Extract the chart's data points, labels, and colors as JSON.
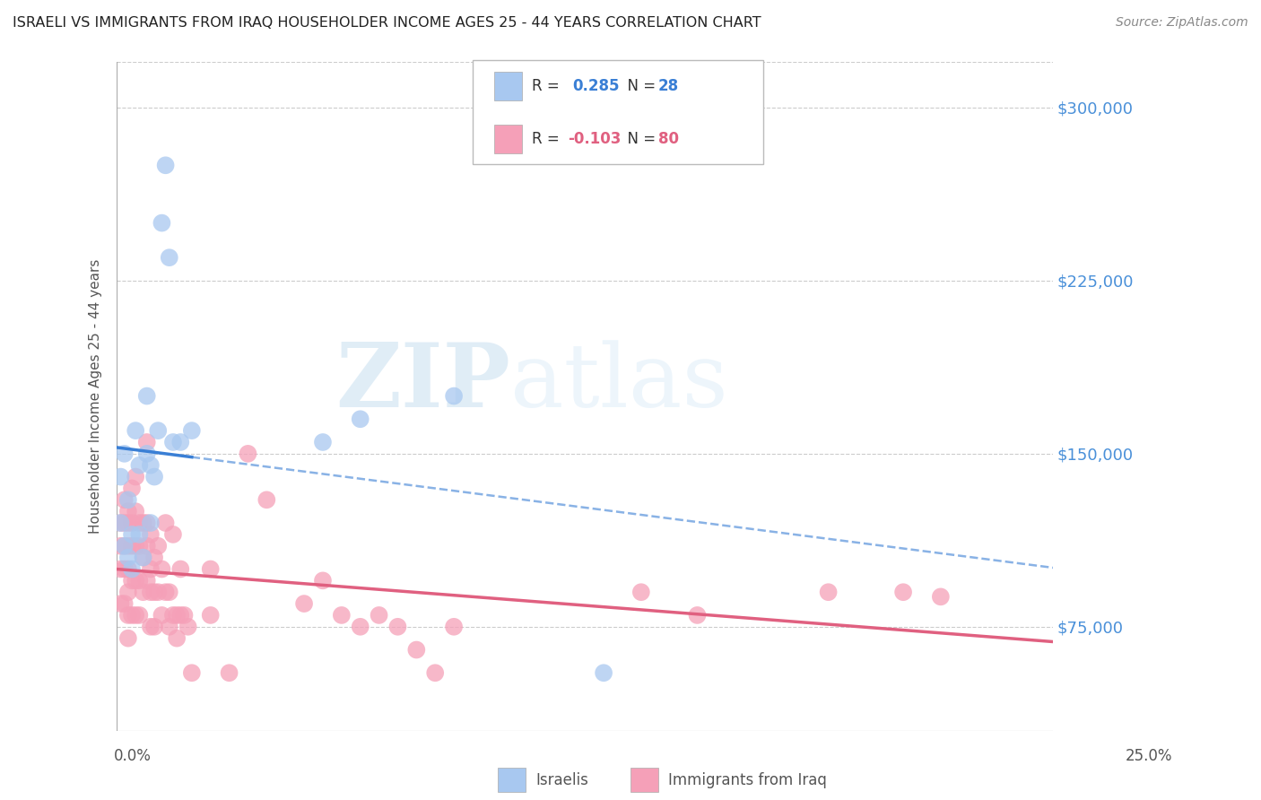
{
  "title": "ISRAELI VS IMMIGRANTS FROM IRAQ HOUSEHOLDER INCOME AGES 25 - 44 YEARS CORRELATION CHART",
  "source": "Source: ZipAtlas.com",
  "ylabel": "Householder Income Ages 25 - 44 years",
  "ytick_labels": [
    "$75,000",
    "$150,000",
    "$225,000",
    "$300,000"
  ],
  "ytick_values": [
    75000,
    150000,
    225000,
    300000
  ],
  "ymin": 30000,
  "ymax": 320000,
  "xmin": 0.0,
  "xmax": 0.25,
  "color_israeli": "#a8c8f0",
  "color_iraq": "#f5a0b8",
  "line_color_israeli": "#3a7fd5",
  "line_color_iraq": "#e06080",
  "watermark_zip": "ZIP",
  "watermark_atlas": "atlas",
  "israelis_x": [
    0.001,
    0.001,
    0.002,
    0.002,
    0.003,
    0.003,
    0.004,
    0.004,
    0.005,
    0.006,
    0.006,
    0.007,
    0.008,
    0.008,
    0.009,
    0.009,
    0.01,
    0.011,
    0.012,
    0.013,
    0.014,
    0.015,
    0.017,
    0.02,
    0.055,
    0.065,
    0.09,
    0.13
  ],
  "israelis_y": [
    140000,
    120000,
    150000,
    110000,
    130000,
    105000,
    115000,
    100000,
    160000,
    145000,
    115000,
    105000,
    175000,
    150000,
    145000,
    120000,
    140000,
    160000,
    250000,
    275000,
    235000,
    155000,
    155000,
    160000,
    155000,
    165000,
    175000,
    55000
  ],
  "iraq_x": [
    0.001,
    0.001,
    0.001,
    0.001,
    0.002,
    0.002,
    0.002,
    0.002,
    0.002,
    0.003,
    0.003,
    0.003,
    0.003,
    0.003,
    0.003,
    0.003,
    0.004,
    0.004,
    0.004,
    0.004,
    0.004,
    0.005,
    0.005,
    0.005,
    0.005,
    0.005,
    0.006,
    0.006,
    0.006,
    0.006,
    0.007,
    0.007,
    0.007,
    0.008,
    0.008,
    0.008,
    0.008,
    0.009,
    0.009,
    0.009,
    0.009,
    0.01,
    0.01,
    0.01,
    0.011,
    0.011,
    0.012,
    0.012,
    0.013,
    0.013,
    0.014,
    0.014,
    0.015,
    0.015,
    0.016,
    0.016,
    0.017,
    0.017,
    0.018,
    0.019,
    0.02,
    0.025,
    0.025,
    0.03,
    0.035,
    0.04,
    0.05,
    0.055,
    0.06,
    0.065,
    0.07,
    0.075,
    0.08,
    0.085,
    0.09,
    0.14,
    0.155,
    0.19,
    0.21,
    0.22
  ],
  "iraq_y": [
    120000,
    110000,
    100000,
    85000,
    130000,
    120000,
    110000,
    100000,
    85000,
    125000,
    120000,
    110000,
    100000,
    90000,
    80000,
    70000,
    135000,
    120000,
    110000,
    95000,
    80000,
    140000,
    125000,
    110000,
    95000,
    80000,
    120000,
    110000,
    95000,
    80000,
    120000,
    105000,
    90000,
    155000,
    120000,
    110000,
    95000,
    115000,
    100000,
    90000,
    75000,
    105000,
    90000,
    75000,
    110000,
    90000,
    100000,
    80000,
    120000,
    90000,
    90000,
    75000,
    115000,
    80000,
    80000,
    70000,
    100000,
    80000,
    80000,
    75000,
    55000,
    100000,
    80000,
    55000,
    150000,
    130000,
    85000,
    95000,
    80000,
    75000,
    80000,
    75000,
    65000,
    55000,
    75000,
    90000,
    80000,
    90000,
    90000,
    88000
  ]
}
